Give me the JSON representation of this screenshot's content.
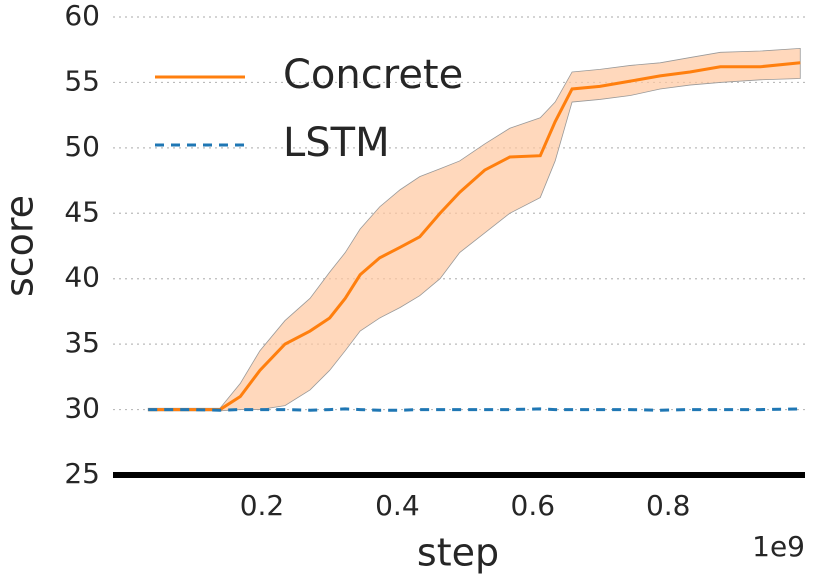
{
  "chart_data": {
    "type": "line",
    "xlabel": "step",
    "ylabel": "score",
    "x_offset_label": "1e9",
    "x": [
      0.032,
      0.094,
      0.138,
      0.168,
      0.197,
      0.234,
      0.271,
      0.3,
      0.323,
      0.345,
      0.374,
      0.404,
      0.433,
      0.463,
      0.492,
      0.529,
      0.566,
      0.611,
      0.633,
      0.658,
      0.699,
      0.744,
      0.788,
      0.832,
      0.877,
      0.936,
      0.995
    ],
    "series": [
      {
        "name": "Concrete",
        "color": "#ff7f0e",
        "band_color": "#ffc8a0",
        "dash": false,
        "values": [
          30,
          30,
          30,
          31,
          33,
          35,
          36,
          37,
          38.5,
          40.3,
          41.6,
          42.4,
          43.2,
          45,
          46.6,
          48.3,
          49.3,
          49.4,
          52,
          54.5,
          54.7,
          55.1,
          55.5,
          55.8,
          56.2,
          56.2,
          56.5
        ],
        "upper": [
          30.1,
          30.1,
          30.1,
          32,
          34.5,
          36.8,
          38.5,
          40.5,
          42,
          43.8,
          45.5,
          46.8,
          47.8,
          48.4,
          49,
          50.3,
          51.5,
          52.3,
          53.5,
          55.8,
          56,
          56.3,
          56.5,
          56.9,
          57.3,
          57.4,
          57.6
        ],
        "lower": [
          29.9,
          29.9,
          29.9,
          30,
          30,
          30.3,
          31.5,
          33,
          34.5,
          36,
          37,
          37.8,
          38.7,
          40,
          42,
          43.5,
          45,
          46.2,
          49,
          53.5,
          53.7,
          54,
          54.5,
          54.8,
          55,
          55.2,
          55.3
        ]
      },
      {
        "name": "LSTM",
        "color": "#1f77b4",
        "dash": true,
        "values": [
          30,
          30,
          29.95,
          30,
          30,
          30,
          29.95,
          30,
          30.05,
          30,
          29.95,
          29.95,
          30,
          30,
          30,
          30,
          30,
          30.05,
          30,
          30,
          30,
          30,
          29.95,
          30,
          30,
          30,
          30.05
        ]
      }
    ],
    "xlim": [
      -0.02,
      1.002
    ],
    "xticks": [
      0.2,
      0.4,
      0.6,
      0.8
    ],
    "ylim": [
      25,
      60
    ],
    "yticks": [
      25,
      30,
      35,
      40,
      45,
      50,
      55,
      60
    ],
    "grid": true,
    "legend": "upper left"
  }
}
